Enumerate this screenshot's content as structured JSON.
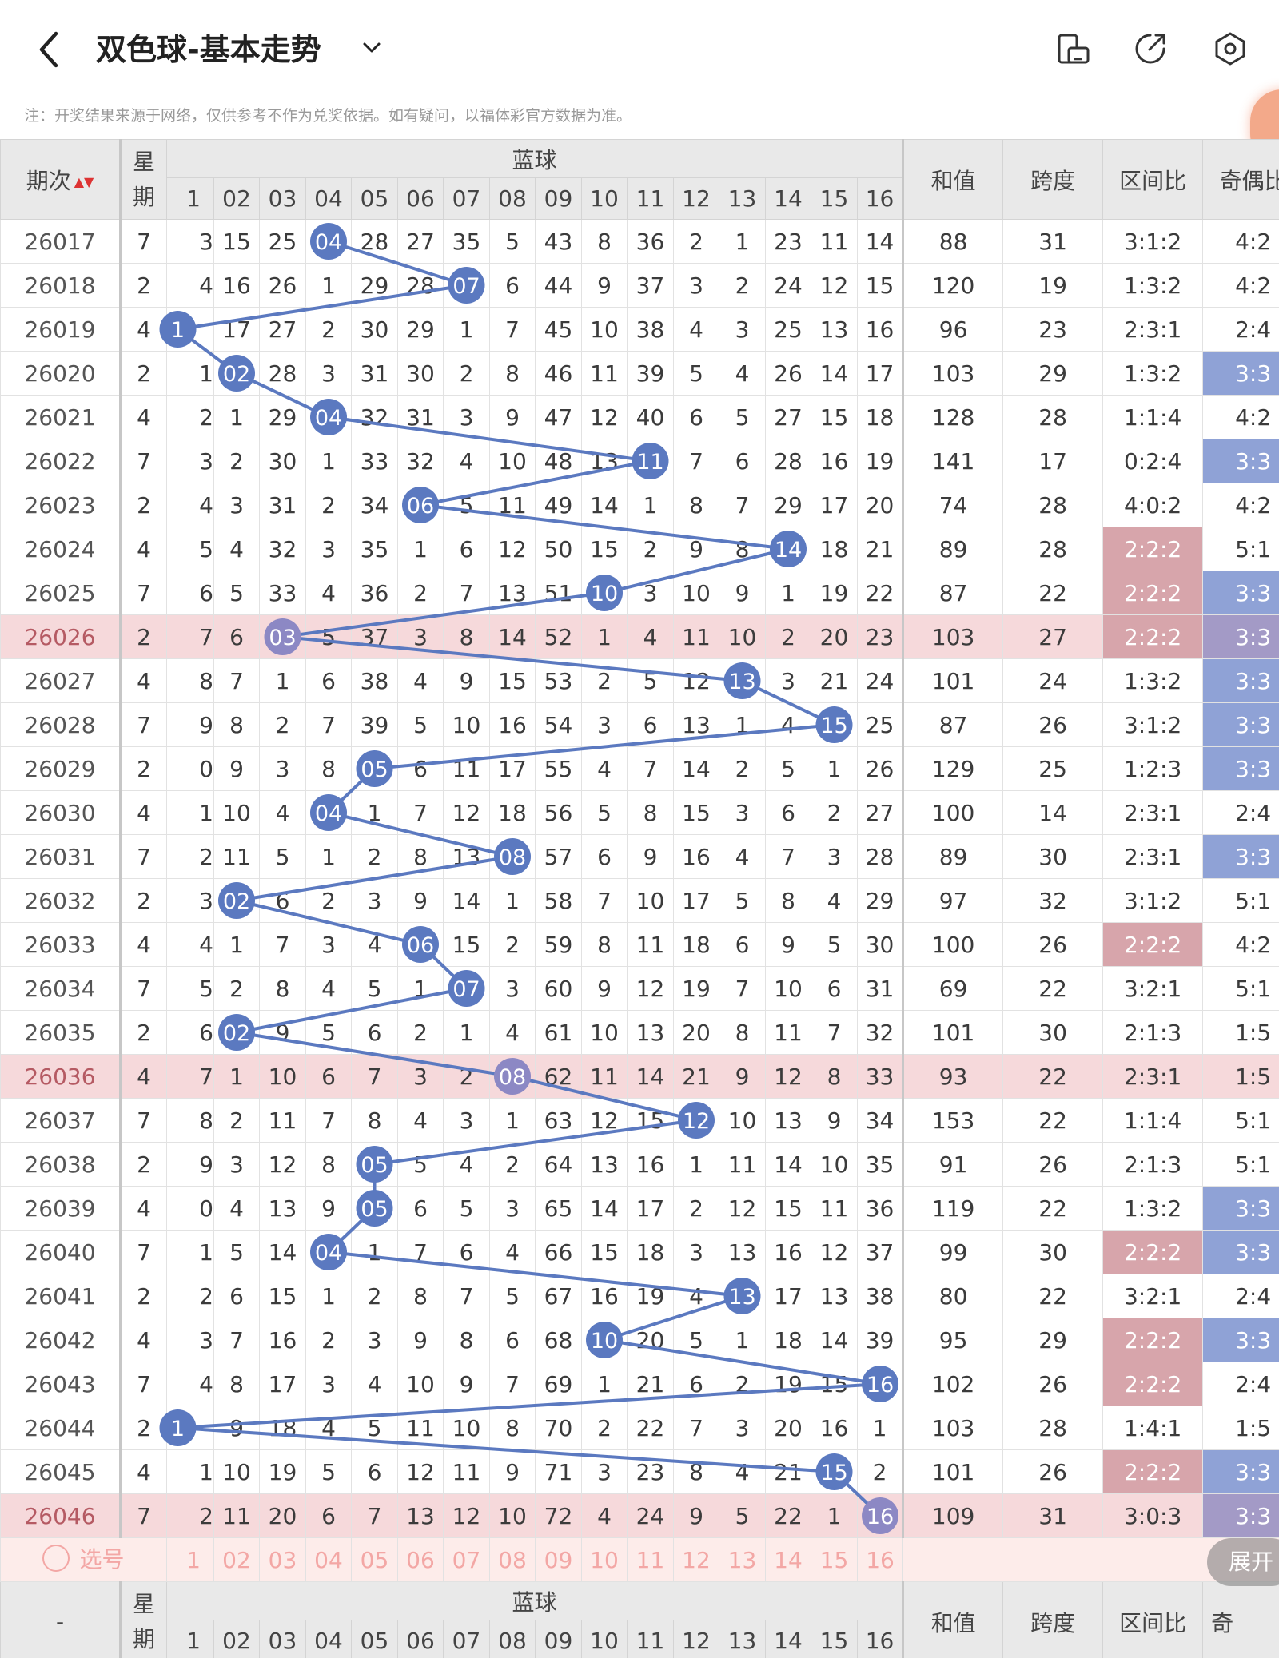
{
  "header": {
    "title": "双色球-基本走势",
    "notice": "注：开奖结果来源于网络，仅供参考不作为兑奖依据。如有疑问，以福体彩官方数据为准。"
  },
  "columns": {
    "issue": "期次",
    "week": "星期",
    "blue": "蓝球",
    "sum": "和值",
    "span": "跨度",
    "zone": "区间比",
    "oddeven": "奇偶比",
    "numbers": [
      "1",
      "02",
      "03",
      "04",
      "05",
      "06",
      "07",
      "08",
      "09",
      "10",
      "11",
      "12",
      "13",
      "14",
      "15",
      "16"
    ]
  },
  "rows": [
    {
      "issue": "26017",
      "week": "7",
      "cells": [
        "3",
        "15",
        "25",
        "04",
        "28",
        "27",
        "35",
        "5",
        "43",
        "8",
        "36",
        "2",
        "1",
        "23",
        "11",
        "14"
      ],
      "ball": 4,
      "sum": "88",
      "span": "31",
      "zone": "3:1:2",
      "oe": "4:2"
    },
    {
      "issue": "26018",
      "week": "2",
      "cells": [
        "4",
        "16",
        "26",
        "1",
        "29",
        "28",
        "07",
        "6",
        "44",
        "9",
        "37",
        "3",
        "2",
        "24",
        "12",
        "15"
      ],
      "ball": 7,
      "sum": "120",
      "span": "19",
      "zone": "1:3:2",
      "oe": "4:2"
    },
    {
      "issue": "26019",
      "week": "4",
      "cells": [
        "1",
        "17",
        "27",
        "2",
        "30",
        "29",
        "1",
        "7",
        "45",
        "10",
        "38",
        "4",
        "3",
        "25",
        "13",
        "16"
      ],
      "ball": 1,
      "sum": "96",
      "span": "23",
      "zone": "2:3:1",
      "oe": "2:4"
    },
    {
      "issue": "26020",
      "week": "2",
      "cells": [
        "1",
        "02",
        "28",
        "3",
        "31",
        "30",
        "2",
        "8",
        "46",
        "11",
        "39",
        "5",
        "4",
        "26",
        "14",
        "17"
      ],
      "ball": 2,
      "sum": "103",
      "span": "29",
      "zone": "1:3:2",
      "oe": "3:3",
      "oeHl": true
    },
    {
      "issue": "26021",
      "week": "4",
      "cells": [
        "2",
        "1",
        "29",
        "04",
        "32",
        "31",
        "3",
        "9",
        "47",
        "12",
        "40",
        "6",
        "5",
        "27",
        "15",
        "18"
      ],
      "ball": 4,
      "sum": "128",
      "span": "28",
      "zone": "1:1:4",
      "oe": "4:2"
    },
    {
      "issue": "26022",
      "week": "7",
      "cells": [
        "3",
        "2",
        "30",
        "1",
        "33",
        "32",
        "4",
        "10",
        "48",
        "13",
        "11",
        "7",
        "6",
        "28",
        "16",
        "19"
      ],
      "ball": 11,
      "sum": "141",
      "span": "17",
      "zone": "0:2:4",
      "oe": "3:3",
      "oeHl": true
    },
    {
      "issue": "26023",
      "week": "2",
      "cells": [
        "4",
        "3",
        "31",
        "2",
        "34",
        "06",
        "5",
        "11",
        "49",
        "14",
        "1",
        "8",
        "7",
        "29",
        "17",
        "20"
      ],
      "ball": 6,
      "sum": "74",
      "span": "28",
      "zone": "4:0:2",
      "oe": "4:2"
    },
    {
      "issue": "26024",
      "week": "4",
      "cells": [
        "5",
        "4",
        "32",
        "3",
        "35",
        "1",
        "6",
        "12",
        "50",
        "15",
        "2",
        "9",
        "8",
        "14",
        "18",
        "21"
      ],
      "ball": 14,
      "sum": "89",
      "span": "28",
      "zone": "2:2:2",
      "zoneHl": true,
      "oe": "5:1"
    },
    {
      "issue": "26025",
      "week": "7",
      "cells": [
        "6",
        "5",
        "33",
        "4",
        "36",
        "2",
        "7",
        "13",
        "51",
        "10",
        "3",
        "10",
        "9",
        "1",
        "19",
        "22"
      ],
      "ball": 10,
      "sum": "87",
      "span": "22",
      "zone": "2:2:2",
      "zoneHl": true,
      "oe": "3:3",
      "oeHl": true
    },
    {
      "issue": "26026",
      "week": "2",
      "cells": [
        "7",
        "6",
        "03",
        "5",
        "37",
        "3",
        "8",
        "14",
        "52",
        "1",
        "4",
        "11",
        "10",
        "2",
        "20",
        "23"
      ],
      "ball": 3,
      "sum": "103",
      "span": "27",
      "zone": "2:2:2",
      "zoneHl": true,
      "oe": "3:3",
      "oeHl": true,
      "hl": true
    },
    {
      "issue": "26027",
      "week": "4",
      "cells": [
        "8",
        "7",
        "1",
        "6",
        "38",
        "4",
        "9",
        "15",
        "53",
        "2",
        "5",
        "12",
        "13",
        "3",
        "21",
        "24"
      ],
      "ball": 13,
      "sum": "101",
      "span": "24",
      "zone": "1:3:2",
      "oe": "3:3",
      "oeHl": true
    },
    {
      "issue": "26028",
      "week": "7",
      "cells": [
        "9",
        "8",
        "2",
        "7",
        "39",
        "5",
        "10",
        "16",
        "54",
        "3",
        "6",
        "13",
        "1",
        "4",
        "15",
        "25"
      ],
      "ball": 15,
      "sum": "87",
      "span": "26",
      "zone": "3:1:2",
      "oe": "3:3",
      "oeHl": true
    },
    {
      "issue": "26029",
      "week": "2",
      "cells": [
        "0",
        "9",
        "3",
        "8",
        "05",
        "6",
        "11",
        "17",
        "55",
        "4",
        "7",
        "14",
        "2",
        "5",
        "1",
        "26"
      ],
      "ball": 5,
      "sum": "129",
      "span": "25",
      "zone": "1:2:3",
      "oe": "3:3",
      "oeHl": true
    },
    {
      "issue": "26030",
      "week": "4",
      "cells": [
        "1",
        "10",
        "4",
        "04",
        "1",
        "7",
        "12",
        "18",
        "56",
        "5",
        "8",
        "15",
        "3",
        "6",
        "2",
        "27"
      ],
      "ball": 4,
      "sum": "100",
      "span": "14",
      "zone": "2:3:1",
      "oe": "2:4"
    },
    {
      "issue": "26031",
      "week": "7",
      "cells": [
        "2",
        "11",
        "5",
        "1",
        "2",
        "8",
        "13",
        "08",
        "57",
        "6",
        "9",
        "16",
        "4",
        "7",
        "3",
        "28"
      ],
      "ball": 8,
      "sum": "89",
      "span": "30",
      "zone": "2:3:1",
      "oe": "3:3",
      "oeHl": true
    },
    {
      "issue": "26032",
      "week": "2",
      "cells": [
        "3",
        "02",
        "6",
        "2",
        "3",
        "9",
        "14",
        "1",
        "58",
        "7",
        "10",
        "17",
        "5",
        "8",
        "4",
        "29"
      ],
      "ball": 2,
      "sum": "97",
      "span": "32",
      "zone": "3:1:2",
      "oe": "5:1"
    },
    {
      "issue": "26033",
      "week": "4",
      "cells": [
        "4",
        "1",
        "7",
        "3",
        "4",
        "06",
        "15",
        "2",
        "59",
        "8",
        "11",
        "18",
        "6",
        "9",
        "5",
        "30"
      ],
      "ball": 6,
      "sum": "100",
      "span": "26",
      "zone": "2:2:2",
      "zoneHl": true,
      "oe": "4:2"
    },
    {
      "issue": "26034",
      "week": "7",
      "cells": [
        "5",
        "2",
        "8",
        "4",
        "5",
        "1",
        "07",
        "3",
        "60",
        "9",
        "12",
        "19",
        "7",
        "10",
        "6",
        "31"
      ],
      "ball": 7,
      "sum": "69",
      "span": "22",
      "zone": "3:2:1",
      "oe": "5:1"
    },
    {
      "issue": "26035",
      "week": "2",
      "cells": [
        "6",
        "02",
        "9",
        "5",
        "6",
        "2",
        "1",
        "4",
        "61",
        "10",
        "13",
        "20",
        "8",
        "11",
        "7",
        "32"
      ],
      "ball": 2,
      "sum": "101",
      "span": "30",
      "zone": "2:1:3",
      "oe": "1:5"
    },
    {
      "issue": "26036",
      "week": "4",
      "cells": [
        "7",
        "1",
        "10",
        "6",
        "7",
        "3",
        "2",
        "08",
        "62",
        "11",
        "14",
        "21",
        "9",
        "12",
        "8",
        "33"
      ],
      "ball": 8,
      "sum": "93",
      "span": "22",
      "zone": "2:3:1",
      "oe": "1:5",
      "hl": true
    },
    {
      "issue": "26037",
      "week": "7",
      "cells": [
        "8",
        "2",
        "11",
        "7",
        "8",
        "4",
        "3",
        "1",
        "63",
        "12",
        "15",
        "12",
        "10",
        "13",
        "9",
        "34"
      ],
      "ball": 12,
      "sum": "153",
      "span": "22",
      "zone": "1:1:4",
      "oe": "5:1"
    },
    {
      "issue": "26038",
      "week": "2",
      "cells": [
        "9",
        "3",
        "12",
        "8",
        "05",
        "5",
        "4",
        "2",
        "64",
        "13",
        "16",
        "1",
        "11",
        "14",
        "10",
        "35"
      ],
      "ball": 5,
      "sum": "91",
      "span": "26",
      "zone": "2:1:3",
      "oe": "5:1"
    },
    {
      "issue": "26039",
      "week": "4",
      "cells": [
        "0",
        "4",
        "13",
        "9",
        "05",
        "6",
        "5",
        "3",
        "65",
        "14",
        "17",
        "2",
        "12",
        "15",
        "11",
        "36"
      ],
      "ball": 5,
      "sum": "119",
      "span": "22",
      "zone": "1:3:2",
      "oe": "3:3",
      "oeHl": true
    },
    {
      "issue": "26040",
      "week": "7",
      "cells": [
        "1",
        "5",
        "14",
        "04",
        "1",
        "7",
        "6",
        "4",
        "66",
        "15",
        "18",
        "3",
        "13",
        "16",
        "12",
        "37"
      ],
      "ball": 4,
      "sum": "99",
      "span": "30",
      "zone": "2:2:2",
      "zoneHl": true,
      "oe": "3:3",
      "oeHl": true
    },
    {
      "issue": "26041",
      "week": "2",
      "cells": [
        "2",
        "6",
        "15",
        "1",
        "2",
        "8",
        "7",
        "5",
        "67",
        "16",
        "19",
        "4",
        "13",
        "17",
        "13",
        "38"
      ],
      "ball": 13,
      "sum": "80",
      "span": "22",
      "zone": "3:2:1",
      "oe": "2:4"
    },
    {
      "issue": "26042",
      "week": "4",
      "cells": [
        "3",
        "7",
        "16",
        "2",
        "3",
        "9",
        "8",
        "6",
        "68",
        "10",
        "20",
        "5",
        "1",
        "18",
        "14",
        "39"
      ],
      "ball": 10,
      "sum": "95",
      "span": "29",
      "zone": "2:2:2",
      "zoneHl": true,
      "oe": "3:3",
      "oeHl": true
    },
    {
      "issue": "26043",
      "week": "7",
      "cells": [
        "4",
        "8",
        "17",
        "3",
        "4",
        "10",
        "9",
        "7",
        "69",
        "1",
        "21",
        "6",
        "2",
        "19",
        "15",
        "16"
      ],
      "ball": 16,
      "sum": "102",
      "span": "26",
      "zone": "2:2:2",
      "zoneHl": true,
      "oe": "2:4"
    },
    {
      "issue": "26044",
      "week": "2",
      "cells": [
        "1",
        "9",
        "18",
        "4",
        "5",
        "11",
        "10",
        "8",
        "70",
        "2",
        "22",
        "7",
        "3",
        "20",
        "16",
        "1"
      ],
      "ball": 1,
      "sum": "103",
      "span": "28",
      "zone": "1:4:1",
      "oe": "1:5"
    },
    {
      "issue": "26045",
      "week": "4",
      "cells": [
        "1",
        "10",
        "19",
        "5",
        "6",
        "12",
        "11",
        "9",
        "71",
        "3",
        "23",
        "8",
        "4",
        "21",
        "15",
        "2"
      ],
      "ball": 15,
      "sum": "101",
      "span": "26",
      "zone": "2:2:2",
      "zoneHl": true,
      "oe": "3:3",
      "oeHl": true
    },
    {
      "issue": "26046",
      "week": "7",
      "cells": [
        "2",
        "11",
        "20",
        "6",
        "7",
        "13",
        "12",
        "10",
        "72",
        "4",
        "24",
        "9",
        "5",
        "22",
        "1",
        "16"
      ],
      "ball": 16,
      "sum": "109",
      "span": "31",
      "zone": "3:0:3",
      "oe": "3:3",
      "oeHl": true,
      "hl": true
    }
  ],
  "select_row": {
    "label": "选号",
    "numbers": [
      "1",
      "02",
      "03",
      "04",
      "05",
      "06",
      "07",
      "08",
      "09",
      "10",
      "11",
      "12",
      "13",
      "14",
      "15",
      "16"
    ]
  },
  "footer_header": {
    "issue": "-",
    "week": "星期",
    "blue": "蓝球",
    "sum": "和值",
    "span": "跨度",
    "zone": "区间比",
    "oddeven": "奇",
    "numbers": [
      "1",
      "02",
      "03",
      "04",
      "05",
      "06",
      "07",
      "08",
      "09",
      "10",
      "11",
      "12",
      "13",
      "14",
      "15",
      "16"
    ]
  },
  "expand_label": "展开",
  "colors": {
    "ball": "#5b79c0",
    "line": "#5b79c0",
    "highlight_row": "#f6d9db",
    "zone_highlight": "#d7a5ab",
    "oddeven_highlight": "#8fa2d6",
    "select_row": "#fdecea"
  }
}
